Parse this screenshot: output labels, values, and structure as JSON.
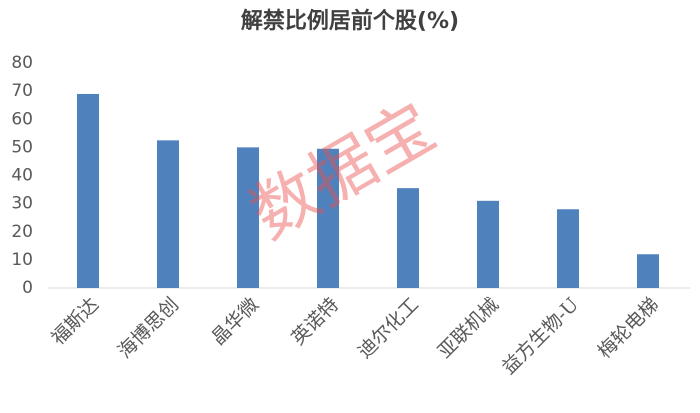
{
  "chart_data": {
    "type": "bar",
    "title": "解禁比例居前个股(%)",
    "categories": [
      "福斯达",
      "海博思创",
      "晶华微",
      "英诺特",
      "迪尔化工",
      "亚联机械",
      "益方生物-U",
      "梅轮电梯"
    ],
    "values": [
      69,
      52.5,
      50,
      49.5,
      35.5,
      31,
      28,
      12
    ],
    "color": "#4f81bd",
    "ylim": [
      0,
      80
    ],
    "yticks": [
      0,
      10,
      20,
      30,
      40,
      50,
      60,
      70,
      80
    ],
    "grid": false,
    "watermark": "数据宝"
  }
}
